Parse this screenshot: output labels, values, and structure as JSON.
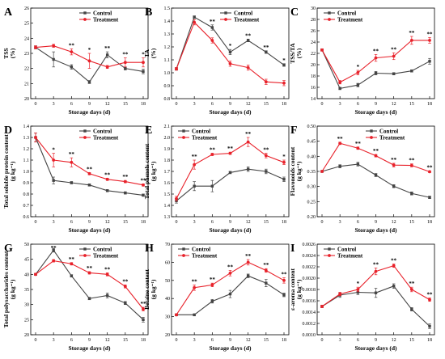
{
  "figure": {
    "xlabel": "Storage days (d)",
    "legend": {
      "control": "Control",
      "treatment": "Treatment"
    }
  },
  "colors": {
    "control": "#444444",
    "treatment": "#e8212a"
  },
  "chart_data": [
    {
      "id": "A",
      "panel_label": "A",
      "type": "line",
      "legend_position": "top-right",
      "ylabel_lines": [
        "TSS",
        "(%)"
      ],
      "x": [
        0,
        3,
        6,
        9,
        12,
        15,
        18
      ],
      "xlim": [
        0,
        18
      ],
      "ylim": [
        20,
        26
      ],
      "yticks": [
        "20",
        "21",
        "22",
        "23",
        "24",
        "25",
        "26"
      ],
      "series": [
        {
          "name": "Control",
          "values": [
            23.4,
            22.6,
            22.1,
            21.1,
            22.9,
            22.0,
            21.8
          ],
          "err": [
            0.1,
            0.5,
            0.15,
            0.1,
            0.2,
            0.1,
            0.15
          ]
        },
        {
          "name": "Treatment",
          "values": [
            23.4,
            23.5,
            23.1,
            22.5,
            22.1,
            22.4,
            22.4
          ],
          "err": [
            0.1,
            0.1,
            0.2,
            0.5,
            0.1,
            0.3,
            0.3
          ]
        }
      ],
      "sig": [
        "",
        "",
        "**",
        "*",
        "**",
        "**",
        "*"
      ]
    },
    {
      "id": "B",
      "panel_label": "B",
      "type": "line",
      "legend_position": "top-right",
      "ylabel_lines": [
        "TA",
        "(%)"
      ],
      "x": [
        0,
        3,
        6,
        9,
        12,
        15,
        18
      ],
      "xlim": [
        0,
        18
      ],
      "ylim": [
        0.8,
        1.5
      ],
      "yticks": [
        "0.8",
        "0.9",
        "1.0",
        "1.1",
        "1.2",
        "1.3",
        "1.4",
        "1.5"
      ],
      "series": [
        {
          "name": "Control",
          "values": [
            1.03,
            1.43,
            1.35,
            1.16,
            1.25,
            1.16,
            1.06
          ],
          "err": [
            0.01,
            0.01,
            0.02,
            0.02,
            0.01,
            0.01,
            0.01
          ]
        },
        {
          "name": "Treatment",
          "values": [
            1.03,
            1.39,
            1.25,
            1.07,
            1.04,
            0.93,
            0.92
          ],
          "err": [
            0.01,
            0.02,
            0.02,
            0.02,
            0.02,
            0.02,
            0.02
          ]
        }
      ],
      "sig": [
        "",
        "",
        "**",
        "*",
        "**",
        "**",
        "*"
      ]
    },
    {
      "id": "C",
      "panel_label": "C",
      "type": "line",
      "legend_position": "top-left",
      "ylabel_lines": [
        "TSS/TA",
        "(%)"
      ],
      "x": [
        0,
        3,
        6,
        9,
        12,
        15,
        18
      ],
      "xlim": [
        0,
        18
      ],
      "ylim": [
        14,
        30
      ],
      "yticks": [
        "14",
        "16",
        "18",
        "20",
        "22",
        "24",
        "26",
        "28",
        "30"
      ],
      "series": [
        {
          "name": "Control",
          "values": [
            22.6,
            15.8,
            16.4,
            18.5,
            18.4,
            18.9,
            20.6
          ],
          "err": [
            0.2,
            0.2,
            0.3,
            0.3,
            0.2,
            0.2,
            0.5
          ]
        },
        {
          "name": "Treatment",
          "values": [
            22.6,
            16.9,
            18.6,
            21.2,
            21.5,
            24.3,
            24.3
          ],
          "err": [
            0.2,
            0.3,
            0.4,
            0.6,
            0.6,
            0.7,
            0.5
          ]
        }
      ],
      "sig": [
        "",
        "",
        "*",
        "**",
        "**",
        "**",
        "**"
      ]
    },
    {
      "id": "D",
      "panel_label": "D",
      "type": "line",
      "legend_position": "top-right",
      "ylabel_lines": [
        "Total soluble protein content",
        "(g kg⁻¹)"
      ],
      "x": [
        0,
        3,
        6,
        9,
        12,
        15,
        18
      ],
      "xlim": [
        0,
        18
      ],
      "ylim": [
        0.6,
        1.4
      ],
      "yticks": [
        "0.6",
        "0.7",
        "0.8",
        "0.9",
        "1.0",
        "1.1",
        "1.2",
        "1.3",
        "1.4"
      ],
      "series": [
        {
          "name": "Control",
          "values": [
            1.3,
            0.92,
            0.9,
            0.88,
            0.83,
            0.81,
            0.79
          ],
          "err": [
            0.04,
            0.03,
            0.01,
            0.01,
            0.01,
            0.01,
            0.01
          ]
        },
        {
          "name": "Treatment",
          "values": [
            1.3,
            1.1,
            1.08,
            0.98,
            0.93,
            0.91,
            0.88
          ],
          "err": [
            0.04,
            0.06,
            0.04,
            0.01,
            0.01,
            0.01,
            0.01
          ]
        }
      ],
      "sig": [
        "",
        "*",
        "**",
        "**",
        "**",
        "**",
        "**"
      ]
    },
    {
      "id": "E",
      "panel_label": "E",
      "type": "line",
      "legend_position": "top-left",
      "ylabel_lines": [
        "Total phenols content",
        "(g kg⁻¹)"
      ],
      "x": [
        0,
        3,
        6,
        9,
        12,
        15,
        18
      ],
      "xlim": [
        0,
        18
      ],
      "ylim": [
        1.3,
        2.1
      ],
      "yticks": [
        "1.3",
        "1.4",
        "1.5",
        "1.6",
        "1.7",
        "1.8",
        "1.9",
        "2.0",
        "2.1"
      ],
      "series": [
        {
          "name": "Control",
          "values": [
            1.44,
            1.57,
            1.57,
            1.69,
            1.72,
            1.7,
            1.63
          ],
          "err": [
            0.02,
            0.04,
            0.05,
            0.01,
            0.02,
            0.02,
            0.02
          ]
        },
        {
          "name": "Treatment",
          "values": [
            1.46,
            1.76,
            1.85,
            1.86,
            1.96,
            1.84,
            1.78
          ],
          "err": [
            0.02,
            0.04,
            0.01,
            0.01,
            0.04,
            0.02,
            0.02
          ]
        }
      ],
      "sig": [
        "",
        "**",
        "**",
        "**",
        "**",
        "**",
        "*"
      ]
    },
    {
      "id": "F",
      "panel_label": "F",
      "type": "line",
      "legend_position": "top-right",
      "ylabel_lines": [
        "Flavonoids content",
        "(g kg⁻¹)"
      ],
      "x": [
        0,
        3,
        6,
        9,
        12,
        15,
        18
      ],
      "xlim": [
        0,
        18
      ],
      "ylim": [
        0.2,
        0.5
      ],
      "yticks": [
        "0.20",
        "0.25",
        "0.30",
        "0.35",
        "0.40",
        "0.45",
        "0.50"
      ],
      "series": [
        {
          "name": "Control",
          "values": [
            0.35,
            0.367,
            0.374,
            0.338,
            0.301,
            0.277,
            0.264
          ],
          "err": [
            0.003,
            0.005,
            0.006,
            0.005,
            0.005,
            0.005,
            0.004
          ]
        },
        {
          "name": "Treatment",
          "values": [
            0.35,
            0.443,
            0.427,
            0.402,
            0.371,
            0.37,
            0.349
          ],
          "err": [
            0.003,
            0.004,
            0.004,
            0.004,
            0.006,
            0.005,
            0.003
          ]
        }
      ],
      "sig": [
        "",
        "**",
        "**",
        "**",
        "**",
        "**",
        "**"
      ]
    },
    {
      "id": "G",
      "panel_label": "G",
      "type": "line",
      "legend_position": "top-right",
      "ylabel_lines": [
        "Total polysaccharides content",
        "(g kg⁻¹)"
      ],
      "x": [
        0,
        3,
        6,
        9,
        12,
        15,
        18
      ],
      "xlim": [
        0,
        18
      ],
      "ylim": [
        20,
        50
      ],
      "yticks": [
        "20",
        "25",
        "30",
        "35",
        "40",
        "45",
        "50"
      ],
      "series": [
        {
          "name": "Control",
          "values": [
            40.0,
            48.0,
            39.5,
            32.0,
            33.0,
            30.5,
            25.0
          ],
          "err": [
            0.3,
            0.6,
            0.4,
            0.4,
            0.8,
            0.5,
            0.8
          ]
        },
        {
          "name": "Treatment",
          "values": [
            40.0,
            44.5,
            43.5,
            40.5,
            40.0,
            36.0,
            28.5
          ],
          "err": [
            0.3,
            0.4,
            0.4,
            0.4,
            0.5,
            0.5,
            0.6
          ]
        }
      ],
      "sig": [
        "",
        "**",
        "**",
        "**",
        "**",
        "**",
        "**"
      ]
    },
    {
      "id": "H",
      "panel_label": "H",
      "type": "line",
      "legend_position": "top-left",
      "ylabel_lines": [
        "Betaine content",
        "(g kg⁻¹)"
      ],
      "x": [
        0,
        3,
        6,
        9,
        12,
        15,
        18
      ],
      "xlim": [
        0,
        18
      ],
      "ylim": [
        20,
        70
      ],
      "yticks": [
        "20",
        "30",
        "40",
        "50",
        "60",
        "70"
      ],
      "series": [
        {
          "name": "Control",
          "values": [
            31.0,
            31.0,
            38.5,
            42.5,
            52.5,
            48.5,
            42.0
          ],
          "err": [
            0.5,
            0.5,
            1.0,
            2.0,
            1.0,
            2.0,
            1.0
          ]
        },
        {
          "name": "Treatment",
          "values": [
            31.0,
            46.0,
            47.5,
            54.0,
            60.0,
            55.5,
            50.0
          ],
          "err": [
            0.5,
            1.5,
            1.0,
            1.5,
            1.5,
            1.0,
            1.5
          ]
        }
      ],
      "sig": [
        "",
        "**",
        "**",
        "**",
        "**",
        "**",
        "**"
      ]
    },
    {
      "id": "I",
      "panel_label": "I",
      "type": "line",
      "legend_position": "top-left",
      "ylabel_lines": [
        "ε-aroma content",
        "(g kg⁻¹)"
      ],
      "x": [
        0,
        3,
        6,
        9,
        12,
        15,
        18
      ],
      "xlim": [
        0,
        18
      ],
      "ylim": [
        0.001,
        0.0026
      ],
      "yticks": [
        "0.0010",
        "0.0012",
        "0.0014",
        "0.0016",
        "0.0018",
        "0.0020",
        "0.0022",
        "0.0024",
        "0.0026"
      ],
      "series": [
        {
          "name": "Control",
          "values": [
            0.0015,
            0.0017,
            0.00175,
            0.00174,
            0.00186,
            0.00145,
            0.00115
          ],
          "err": [
            2e-05,
            4e-05,
            4e-05,
            8e-05,
            4e-05,
            3e-05,
            4e-05
          ]
        },
        {
          "name": "Treatment",
          "values": [
            0.0015,
            0.00172,
            0.0018,
            0.00212,
            0.00222,
            0.0018,
            0.00162
          ],
          "err": [
            2e-05,
            3e-05,
            4e-05,
            6e-05,
            3e-05,
            4e-05,
            3e-05
          ]
        }
      ],
      "sig": [
        "",
        "",
        "*",
        "**",
        "**",
        "**",
        "**"
      ]
    }
  ]
}
